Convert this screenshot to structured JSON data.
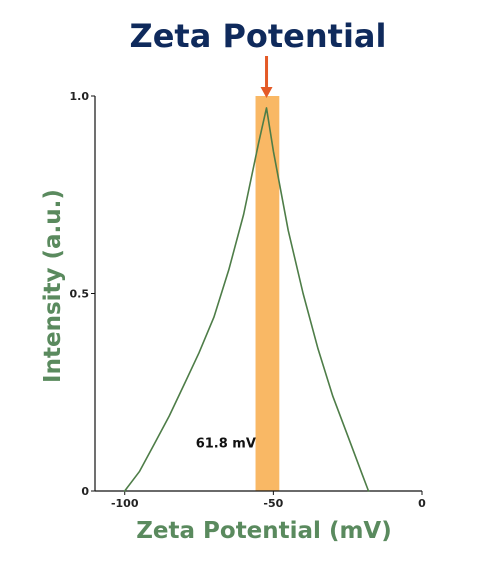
{
  "chart_data": {
    "type": "line",
    "title": "Zeta Potential",
    "xlabel": "Zeta Potential (mV)",
    "ylabel": "Intensity (a.u.)",
    "xlim": [
      -110,
      0
    ],
    "ylim": [
      0,
      1.0
    ],
    "x_ticks": [
      {
        "value": -100,
        "label": "-100"
      },
      {
        "value": -50,
        "label": "-50"
      },
      {
        "value": 0,
        "label": "0"
      }
    ],
    "y_ticks": [
      {
        "value": 0,
        "label": "0"
      },
      {
        "value": 0.5,
        "label": "0.5"
      },
      {
        "value": 1.0,
        "label": "1.0"
      }
    ],
    "grid": false,
    "legend": "none",
    "series": [
      {
        "x": [
          -100.0,
          -95,
          -90,
          -85,
          -80,
          -75,
          -70,
          -65,
          -60,
          -55,
          -52.3,
          -50,
          -45,
          -40,
          -35,
          -30,
          -25,
          -20,
          -18.0
        ],
        "y": [
          0.0,
          0.05,
          0.12,
          0.19,
          0.27,
          0.35,
          0.44,
          0.56,
          0.7,
          0.88,
          0.97,
          0.86,
          0.66,
          0.5,
          0.36,
          0.24,
          0.14,
          0.04,
          0.0
        ],
        "color": "#4e7d48"
      }
    ],
    "highlight_band": {
      "x_range": [
        -56,
        -48
      ],
      "y_top": 1.0,
      "color": "#f9b865"
    },
    "peak_marker": {
      "x": -52.3,
      "color": "#e45a26"
    },
    "annotations": [
      {
        "text": "61.8 mV",
        "x": -66,
        "y": 0.11
      }
    ]
  }
}
